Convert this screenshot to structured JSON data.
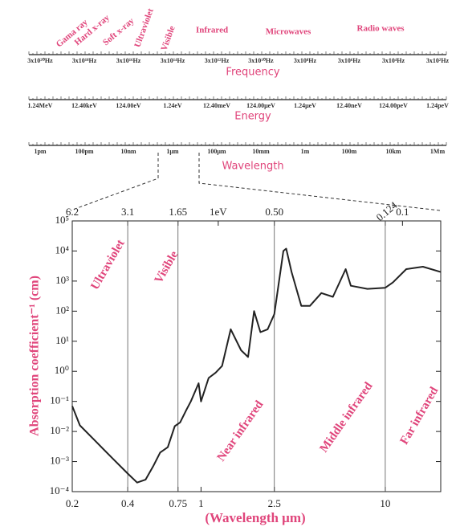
{
  "spectrum": {
    "bands": [
      "Gama ray",
      "Hard x-ray",
      "Soft x-ray",
      "Ultraviolet",
      "Visible",
      "Infrared",
      "Microwaves",
      "Radio waves"
    ],
    "frequency": {
      "title": "Frequency",
      "labels": [
        "3x10²⁰Hz",
        "3x10¹⁸Hz",
        "3x10¹⁶Hz",
        "3x10¹⁴Hz",
        "3x10¹²Hz",
        "3x10¹⁰Hz",
        "3x10⁸Hz",
        "3x10⁶Hz",
        "3x10⁴Hz",
        "3x10²Hz"
      ]
    },
    "energy": {
      "title": "Energy",
      "labels": [
        "1.24MeV",
        "12.40keV",
        "124.00eV",
        "1.24eV",
        "12.40meV",
        "124.00μeV",
        "1.24μeV",
        "12.40neV",
        "124.00peV",
        "1.24peV"
      ]
    },
    "wavelength": {
      "title": "Wavelength",
      "labels": [
        "1pm",
        "100pm",
        "10nm",
        "1μm",
        "100μm",
        "10mm",
        "1m",
        "100m",
        "10km",
        "1Mm"
      ]
    }
  },
  "chart_data": {
    "type": "line",
    "xlabel": "(Wavelength μm)",
    "ylabel": "Absorption coefficient⁻¹ (cm)",
    "xscale": "log",
    "yscale": "log",
    "color": "#222222",
    "xlim": [
      0.2,
      20
    ],
    "ylim": [
      0.0001,
      100000
    ],
    "xticks": [
      0.2,
      0.4,
      0.75,
      1,
      2.5,
      10
    ],
    "x2ticks": [
      {
        "value": 0.2,
        "label": "6.2"
      },
      {
        "value": 0.4,
        "label": "3.1"
      },
      {
        "value": 0.75,
        "label": "1.65"
      },
      {
        "value": 1.24,
        "label": "1eV"
      },
      {
        "value": 2.5,
        "label": "0.50"
      },
      {
        "value": 10,
        "label": "0.124"
      },
      {
        "value": 12.4,
        "label": "0.1"
      }
    ],
    "yticks": [
      {
        "value": 0.0001,
        "label": "10⁻⁴"
      },
      {
        "value": 0.001,
        "label": "10⁻³"
      },
      {
        "value": 0.01,
        "label": "10⁻²"
      },
      {
        "value": 0.1,
        "label": "10⁻¹"
      },
      {
        "value": 1,
        "label": "10⁰"
      },
      {
        "value": 10,
        "label": "10¹"
      },
      {
        "value": 100,
        "label": "10²"
      },
      {
        "value": 1000,
        "label": "10³"
      },
      {
        "value": 10000,
        "label": "10⁴"
      },
      {
        "value": 100000,
        "label": "10⁵"
      }
    ],
    "region_lines": [
      0.4,
      0.75,
      2.5,
      10
    ],
    "annotations": [
      "Ultraviolet",
      "Visible",
      "Near infrared",
      "Middle infrared",
      "Far infrared"
    ],
    "x": [
      0.2,
      0.22,
      0.27,
      0.33,
      0.4,
      0.45,
      0.5,
      0.55,
      0.6,
      0.66,
      0.72,
      0.77,
      0.83,
      0.88,
      0.97,
      1.0,
      1.1,
      1.2,
      1.3,
      1.45,
      1.65,
      1.8,
      1.94,
      2.1,
      2.3,
      2.5,
      2.8,
      2.9,
      3.1,
      3.5,
      3.9,
      4.5,
      5.2,
      6.1,
      6.5,
      8,
      10,
      11,
      13,
      16,
      20
    ],
    "values": [
      0.07,
      0.016,
      0.0045,
      0.0013,
      0.0004,
      0.0002,
      0.00025,
      0.0007,
      0.002,
      0.003,
      0.015,
      0.02,
      0.05,
      0.1,
      0.4,
      0.1,
      0.6,
      0.9,
      1.5,
      25,
      5,
      3,
      100,
      20,
      25,
      80,
      10000,
      12000,
      2000,
      150,
      150,
      400,
      300,
      2500,
      700,
      550,
      600,
      900,
      2500,
      3000,
      2000
    ]
  }
}
